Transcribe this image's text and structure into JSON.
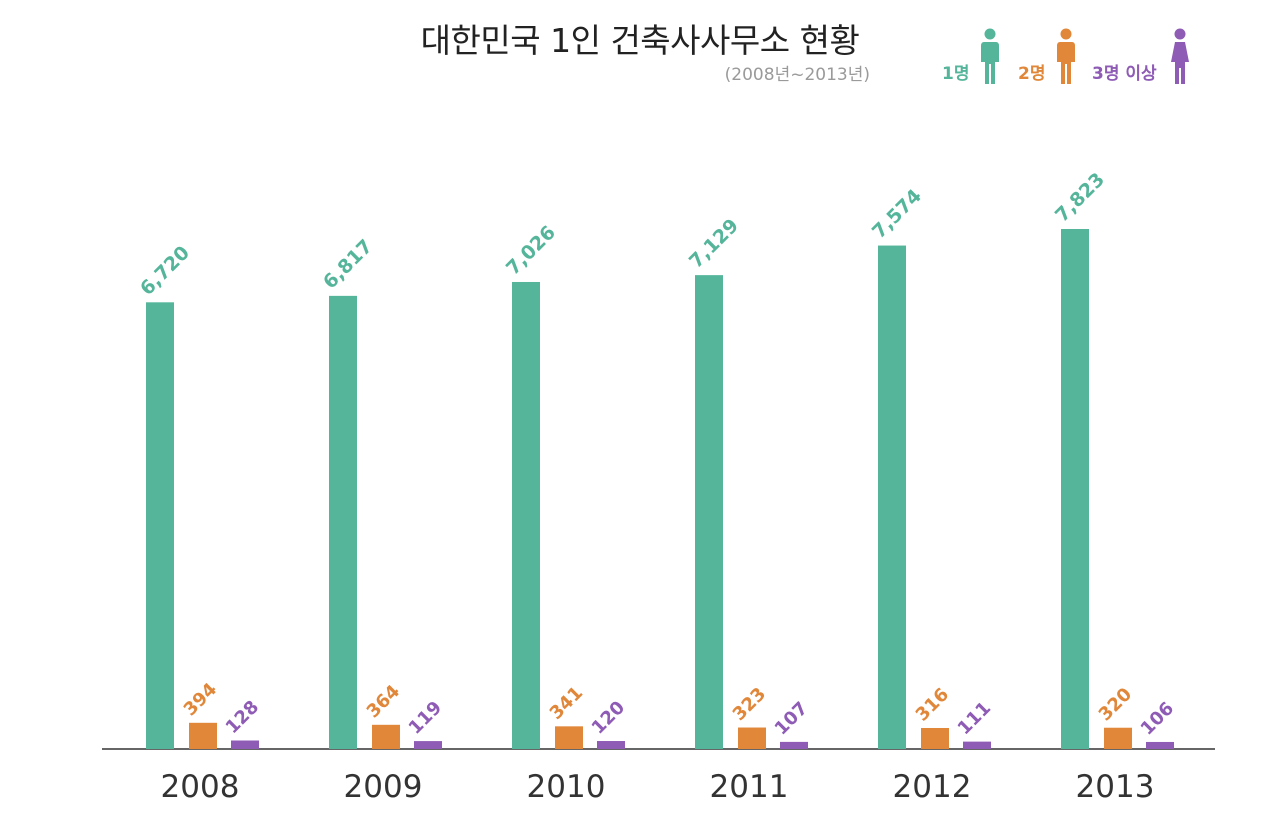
{
  "chart_data": {
    "type": "bar",
    "title": "대한민국 1인 건축사사무소 현황",
    "subtitle": "(2008년~2013년)",
    "categories": [
      "2008",
      "2009",
      "2010",
      "2011",
      "2012",
      "2013"
    ],
    "series": [
      {
        "name": "1명",
        "values": [
          6720,
          6817,
          7026,
          7129,
          7574,
          7823
        ],
        "labels": [
          "6,720",
          "6,817",
          "7,026",
          "7,129",
          "7,574",
          "7,823"
        ],
        "color": "#55b59a",
        "icon": "person-icon"
      },
      {
        "name": "2명",
        "values": [
          394,
          364,
          341,
          323,
          316,
          320
        ],
        "labels": [
          "394",
          "364",
          "341",
          "323",
          "316",
          "320"
        ],
        "color": "#e0873a",
        "icon": "person-icon"
      },
      {
        "name": "3명 이상",
        "values": [
          128,
          119,
          120,
          107,
          111,
          106
        ],
        "labels": [
          "128",
          "119",
          "120",
          "107",
          "111",
          "106"
        ],
        "color": "#8e5bb5",
        "icon": "person-icon"
      }
    ],
    "xlabel": "",
    "ylabel": "",
    "ylim": [
      0,
      7823
    ],
    "grid": false,
    "legend": "top-right"
  }
}
